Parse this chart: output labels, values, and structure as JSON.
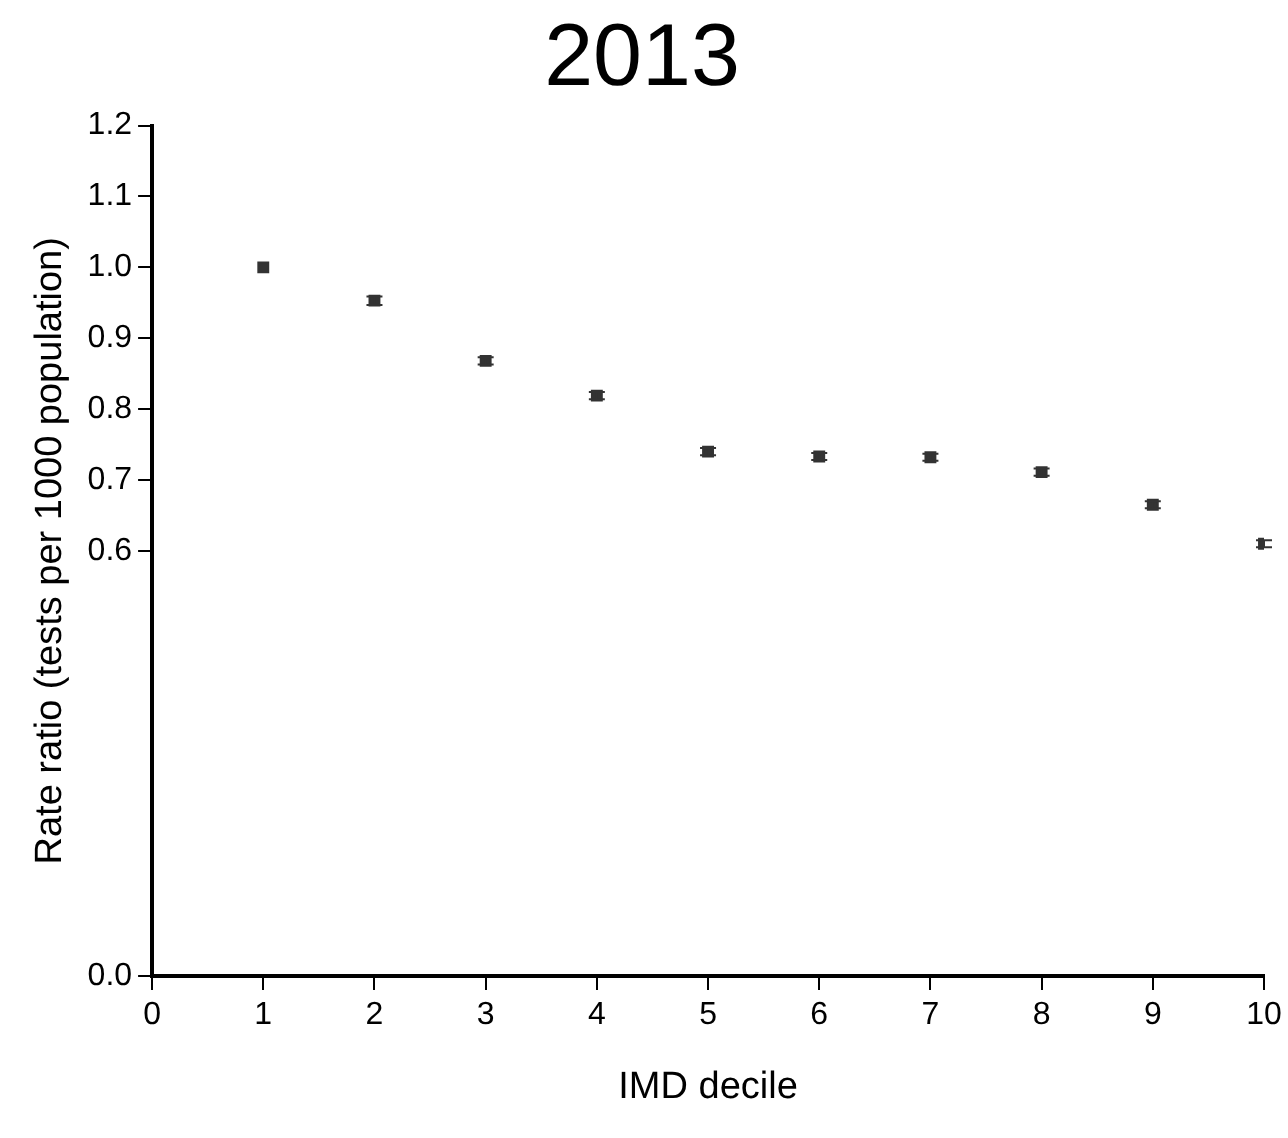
{
  "chart_data": {
    "type": "scatter",
    "title": "2013",
    "xlabel": "IMD decile",
    "ylabel": "Rate ratio (tests per 1000 population)",
    "x": [
      1,
      2,
      3,
      4,
      5,
      6,
      7,
      8,
      9,
      10
    ],
    "series": [
      {
        "color": "#333333",
        "values": [
          1.0,
          0.953,
          0.868,
          0.819,
          0.74,
          0.733,
          0.732,
          0.711,
          0.665,
          0.61
        ],
        "errors": [
          null,
          0.006,
          0.005,
          0.005,
          0.005,
          0.005,
          0.005,
          0.005,
          0.005,
          0.005
        ]
      }
    ],
    "xlim": [
      0,
      10
    ],
    "xticks": [
      0,
      1,
      2,
      3,
      4,
      5,
      6,
      7,
      8,
      9,
      10
    ],
    "ylim": [
      0,
      1.2
    ],
    "yticks": [
      {
        "value": 0,
        "label": "0.0"
      },
      0.6,
      0.7,
      0.8,
      0.9,
      {
        "value": 1,
        "label": "1.0"
      },
      1.1,
      1.2
    ],
    "marker": "square",
    "grid": false,
    "legend": false
  }
}
